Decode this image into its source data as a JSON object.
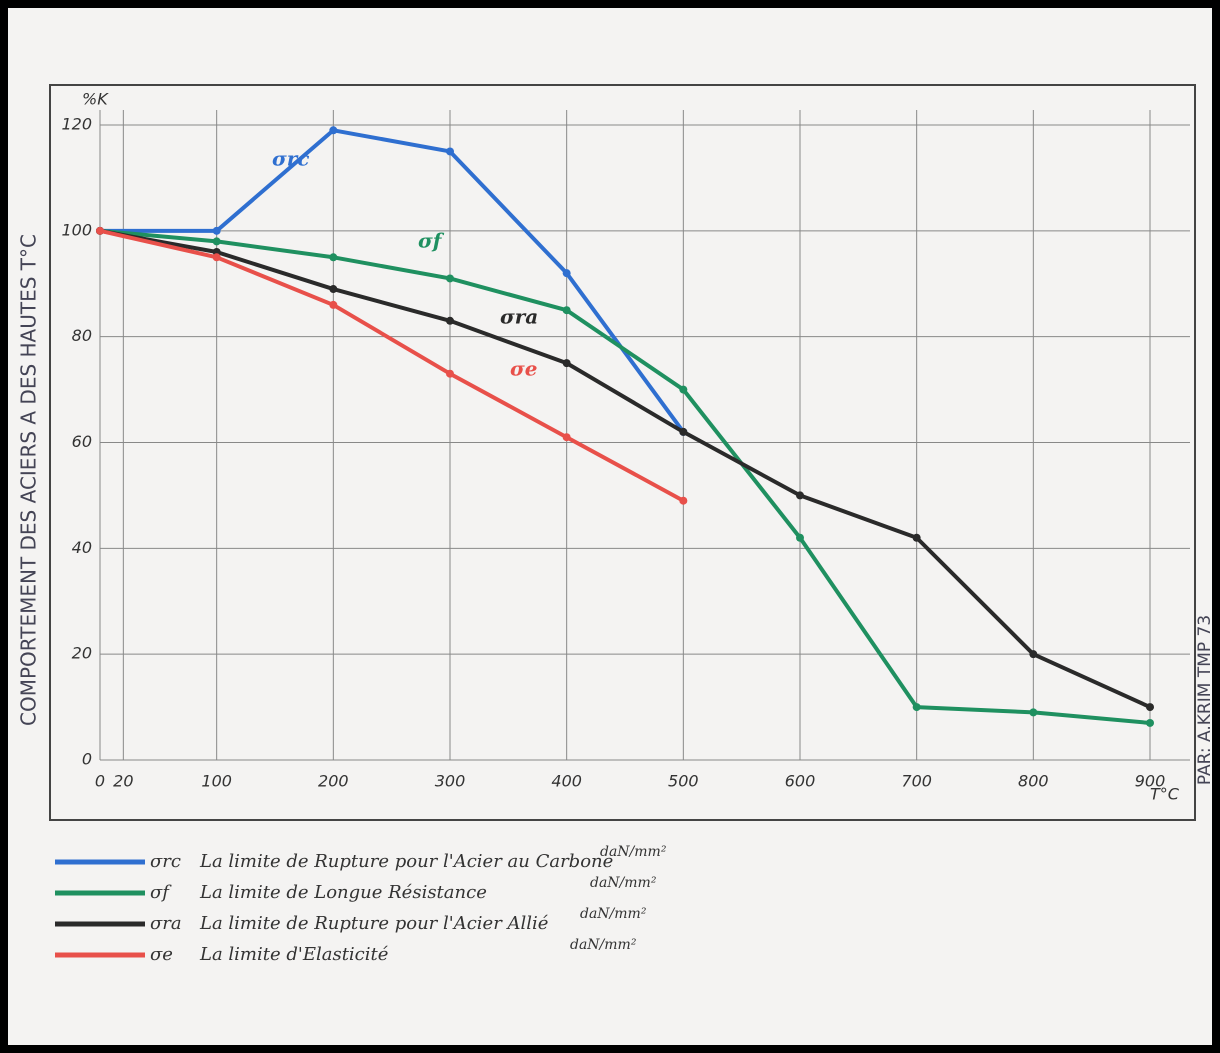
{
  "chart_data": {
    "type": "line",
    "title": "COMPORTEMENT DES ACIERS A DES HAUTES T°C",
    "author": "PAR: A.KRIM TMP 73",
    "y_label": "%K",
    "x_label": "T°C",
    "xlim": [
      0,
      900
    ],
    "ylim": [
      0,
      120
    ],
    "xticks": [
      0,
      20,
      100,
      200,
      300,
      400,
      500,
      600,
      700,
      800,
      900
    ],
    "yticks": [
      0,
      20,
      40,
      60,
      80,
      100,
      120
    ],
    "grid": true,
    "series": [
      {
        "name": "σrc",
        "color": "#2f6fd0",
        "description": "La limite de Rupture pour l'Acier au Carbone",
        "unit": "daN/mm²",
        "x": [
          0,
          100,
          200,
          300,
          400,
          500
        ],
        "values": [
          100,
          100,
          119,
          115,
          92,
          62
        ]
      },
      {
        "name": "σf",
        "color": "#1f9060",
        "description": "La limite de Longue Résistance",
        "unit": "daN/mm²",
        "x": [
          0,
          100,
          200,
          300,
          400,
          500,
          600,
          700,
          800,
          900
        ],
        "values": [
          100,
          98,
          95,
          91,
          85,
          70,
          42,
          10,
          9,
          7
        ]
      },
      {
        "name": "σra",
        "color": "#2a2a2a",
        "description": "La limite de Rupture pour l'Acier Allié",
        "unit": "daN/mm²",
        "x": [
          0,
          100,
          200,
          300,
          400,
          500,
          600,
          700,
          800,
          900
        ],
        "values": [
          100,
          96,
          89,
          83,
          75,
          62,
          50,
          42,
          20,
          10
        ]
      },
      {
        "name": "σe",
        "color": "#e8504a",
        "description": "La limite d'Elasticité",
        "unit": "daN/mm²",
        "x": [
          0,
          100,
          200,
          300,
          400,
          500
        ],
        "values": [
          100,
          95,
          86,
          73,
          61,
          49
        ]
      }
    ]
  }
}
